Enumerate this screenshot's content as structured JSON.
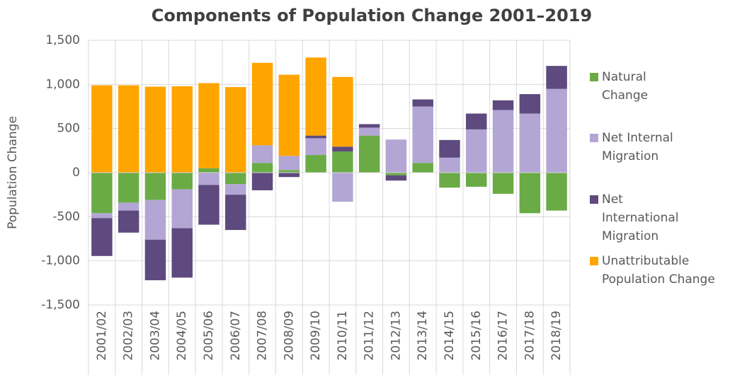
{
  "chart_data": {
    "type": "stacked_bar",
    "title": "Components of Population Change 2001–2019",
    "y_label": "Population Change",
    "categories": [
      "2001/02",
      "2002/03",
      "2003/04",
      "2004/05",
      "2005/06",
      "2006/07",
      "2007/08",
      "2008/09",
      "2009/10",
      "2010/11",
      "2011/12",
      "2012/13",
      "2013/14",
      "2014/15",
      "2015/16",
      "2016/17",
      "2017/18",
      "2018/19"
    ],
    "series": [
      {
        "name": "Natural Change",
        "color": "#6aab46",
        "values": [
          -460,
          -340,
          -310,
          -190,
          50,
          -130,
          110,
          30,
          200,
          240,
          420,
          -30,
          110,
          -170,
          -160,
          -240,
          -460,
          -430
        ]
      },
      {
        "name": "Net Internal Migration",
        "color": "#b3a6d4",
        "values": [
          -55,
          -90,
          -450,
          -440,
          -140,
          -120,
          200,
          160,
          190,
          -330,
          90,
          375,
          640,
          170,
          490,
          710,
          670,
          950
        ]
      },
      {
        "name": "Net International Migration",
        "color": "#5e4a7e",
        "values": [
          -430,
          -250,
          -460,
          -560,
          -450,
          -400,
          -200,
          -50,
          30,
          55,
          40,
          -60,
          80,
          200,
          180,
          110,
          220,
          260
        ]
      },
      {
        "name": "Unattributable Population Change",
        "color": "#ffa500",
        "values": [
          990,
          990,
          975,
          980,
          965,
          970,
          935,
          920,
          885,
          790,
          0,
          0,
          0,
          0,
          0,
          0,
          0,
          0
        ]
      }
    ],
    "ylim": [
      -1500,
      1500
    ],
    "yticks": [
      {
        "value": -1500,
        "label": "-1,500"
      },
      {
        "value": -1000,
        "label": "-1,000"
      },
      -500,
      0,
      500,
      {
        "value": 1000,
        "label": "1,000"
      },
      {
        "value": 1500,
        "label": "1,500"
      }
    ],
    "grid": true
  }
}
